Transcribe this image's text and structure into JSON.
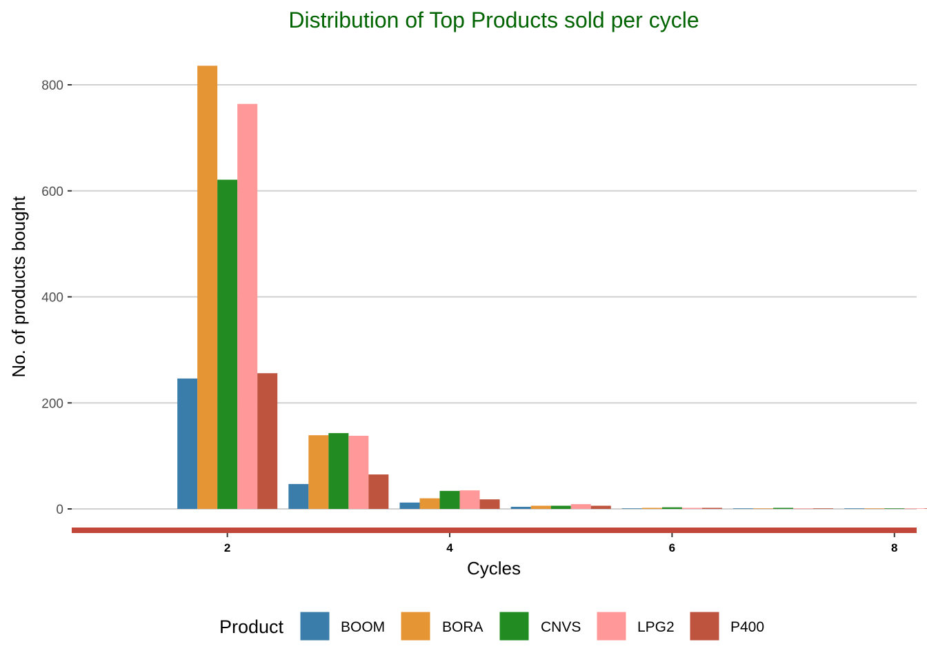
{
  "chart_data": {
    "type": "bar",
    "title": "Distribution of Top Products sold per cycle",
    "xlabel": "Cycles",
    "ylabel": "No. of products bought",
    "x": [
      2,
      3,
      4,
      5,
      6,
      7,
      8
    ],
    "x_ticks": [
      "2",
      "4",
      "6",
      "8"
    ],
    "xlim": [
      0.6,
      8.2
    ],
    "y_ticks": [
      "0",
      "200",
      "400",
      "600",
      "800"
    ],
    "ylim": [
      0,
      840
    ],
    "legend_title": "Product",
    "legend_position": "bottom",
    "grid": "horizontal major",
    "x_axis_line_color": "#C0473A",
    "series": [
      {
        "name": "BOOM",
        "color": "#3A7DAB",
        "values": [
          246,
          47,
          12,
          4,
          1,
          1,
          1
        ]
      },
      {
        "name": "BORA",
        "color": "#E69535",
        "values": [
          836,
          139,
          20,
          6,
          2,
          1,
          1
        ]
      },
      {
        "name": "CNVS",
        "color": "#228B22",
        "values": [
          621,
          143,
          34,
          6,
          3,
          2,
          1
        ]
      },
      {
        "name": "LPG2",
        "color": "#FF9999",
        "values": [
          764,
          138,
          35,
          9,
          2,
          1,
          1
        ]
      },
      {
        "name": "P400",
        "color": "#BE533E",
        "values": [
          256,
          65,
          18,
          6,
          2,
          1,
          1
        ]
      }
    ]
  }
}
